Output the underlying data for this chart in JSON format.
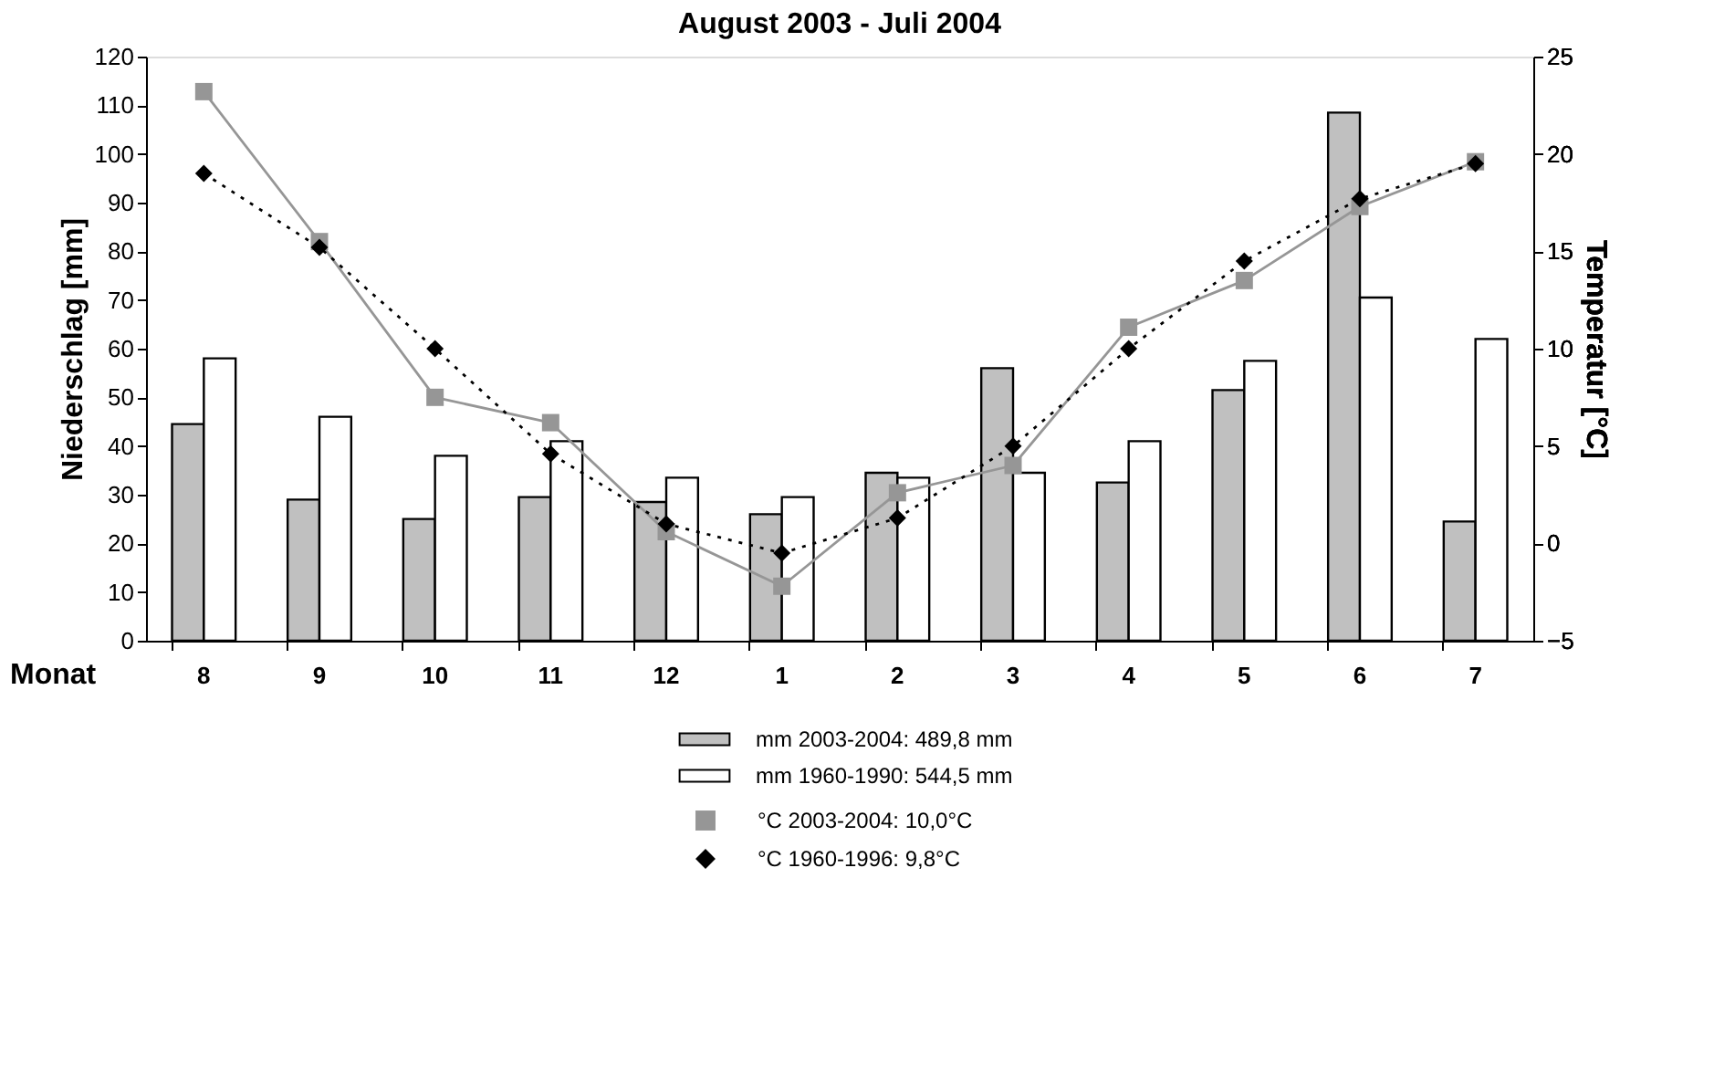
{
  "chart_data": {
    "type": "bar",
    "title": "August 2003 - Juli 2004",
    "xlabel": "Monat",
    "ylabel": "Niederschlag [mm]",
    "y2label": "Temperatur [°C]",
    "categories": [
      "8",
      "9",
      "10",
      "11",
      "12",
      "1",
      "2",
      "3",
      "4",
      "5",
      "6",
      "7"
    ],
    "series": [
      {
        "name": "mm 2003-2004: 489,8 mm",
        "color": "#c0c0c0",
        "values": [
          44.5,
          29,
          25,
          29.5,
          28.5,
          26,
          34.5,
          56,
          32.5,
          51.5,
          108.5,
          24.5
        ]
      },
      {
        "name": "mm 1960-1990: 544,5 mm",
        "color": "#ffffff",
        "values": [
          58,
          46,
          38,
          41,
          33.5,
          29.5,
          33.5,
          34.5,
          41,
          57.5,
          70.5,
          62
        ]
      },
      {
        "name": "°C 2003-2004: 10,0°C",
        "type": "line",
        "axis": "y2",
        "color": "#969696",
        "marker": "square",
        "line_style": "solid",
        "values": [
          23.2,
          15.5,
          7.5,
          6.2,
          0.6,
          -2.2,
          2.6,
          4.0,
          11.1,
          13.5,
          17.3,
          19.6
        ]
      },
      {
        "name": "°C 1960-1996: 9,8°C",
        "type": "line",
        "axis": "y2",
        "color": "#000000",
        "marker": "diamond",
        "line_style": "dotted",
        "values": [
          19.0,
          15.2,
          10.0,
          4.6,
          1.0,
          -0.5,
          1.3,
          5.0,
          10.0,
          14.5,
          17.7,
          19.5
        ]
      }
    ],
    "ylim": [
      0,
      120
    ],
    "yticks": [
      0,
      10,
      20,
      30,
      40,
      50,
      60,
      70,
      80,
      90,
      100,
      110,
      120
    ],
    "y2lim": [
      -5,
      25
    ],
    "y2ticks": [
      -5,
      0,
      5,
      10,
      15,
      20,
      25
    ],
    "grid": false,
    "legend": "bottom"
  }
}
